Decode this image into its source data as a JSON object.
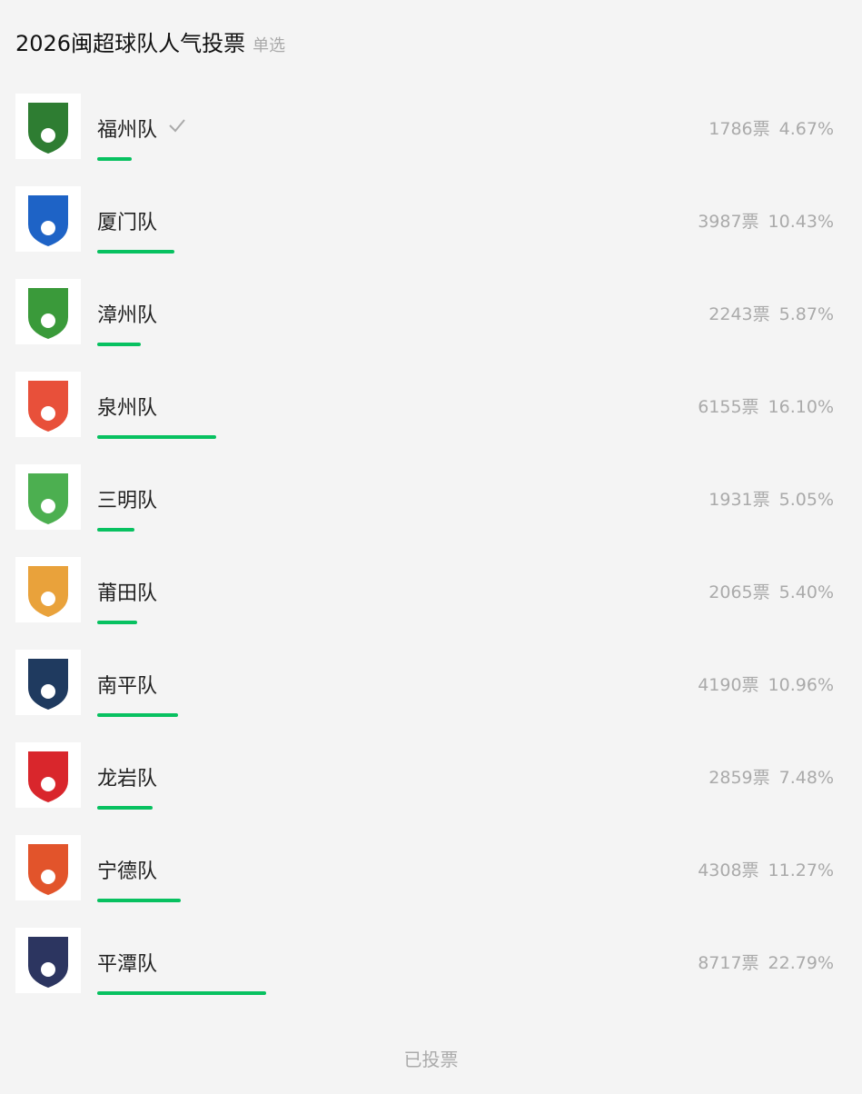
{
  "header": {
    "title": "2026闽超球队人气投票",
    "mode": "单选"
  },
  "options": [
    {
      "name": "福州队",
      "votes": "1786票",
      "percent": "4.67%",
      "share": 4.67,
      "checked": true,
      "logo_color": "#2e7d32"
    },
    {
      "name": "厦门队",
      "votes": "3987票",
      "percent": "10.43%",
      "share": 10.43,
      "checked": false,
      "logo_color": "#1e63c6"
    },
    {
      "name": "漳州队",
      "votes": "2243票",
      "percent": "5.87%",
      "share": 5.87,
      "checked": false,
      "logo_color": "#3a9a3a"
    },
    {
      "name": "泉州队",
      "votes": "6155票",
      "percent": "16.10%",
      "share": 16.1,
      "checked": false,
      "logo_color": "#e8503a"
    },
    {
      "name": "三明队",
      "votes": "1931票",
      "percent": "5.05%",
      "share": 5.05,
      "checked": false,
      "logo_color": "#4caf50"
    },
    {
      "name": "莆田队",
      "votes": "2065票",
      "percent": "5.40%",
      "share": 5.4,
      "checked": false,
      "logo_color": "#e9a23b"
    },
    {
      "name": "南平队",
      "votes": "4190票",
      "percent": "10.96%",
      "share": 10.96,
      "checked": false,
      "logo_color": "#1f3a5f"
    },
    {
      "name": "龙岩队",
      "votes": "2859票",
      "percent": "7.48%",
      "share": 7.48,
      "checked": false,
      "logo_color": "#d9262c"
    },
    {
      "name": "宁德队",
      "votes": "4308票",
      "percent": "11.27%",
      "share": 11.27,
      "checked": false,
      "logo_color": "#e2542b"
    },
    {
      "name": "平潭队",
      "votes": "8717票",
      "percent": "22.79%",
      "share": 22.79,
      "checked": false,
      "logo_color": "#2c3560"
    }
  ],
  "footer": "已投票"
}
